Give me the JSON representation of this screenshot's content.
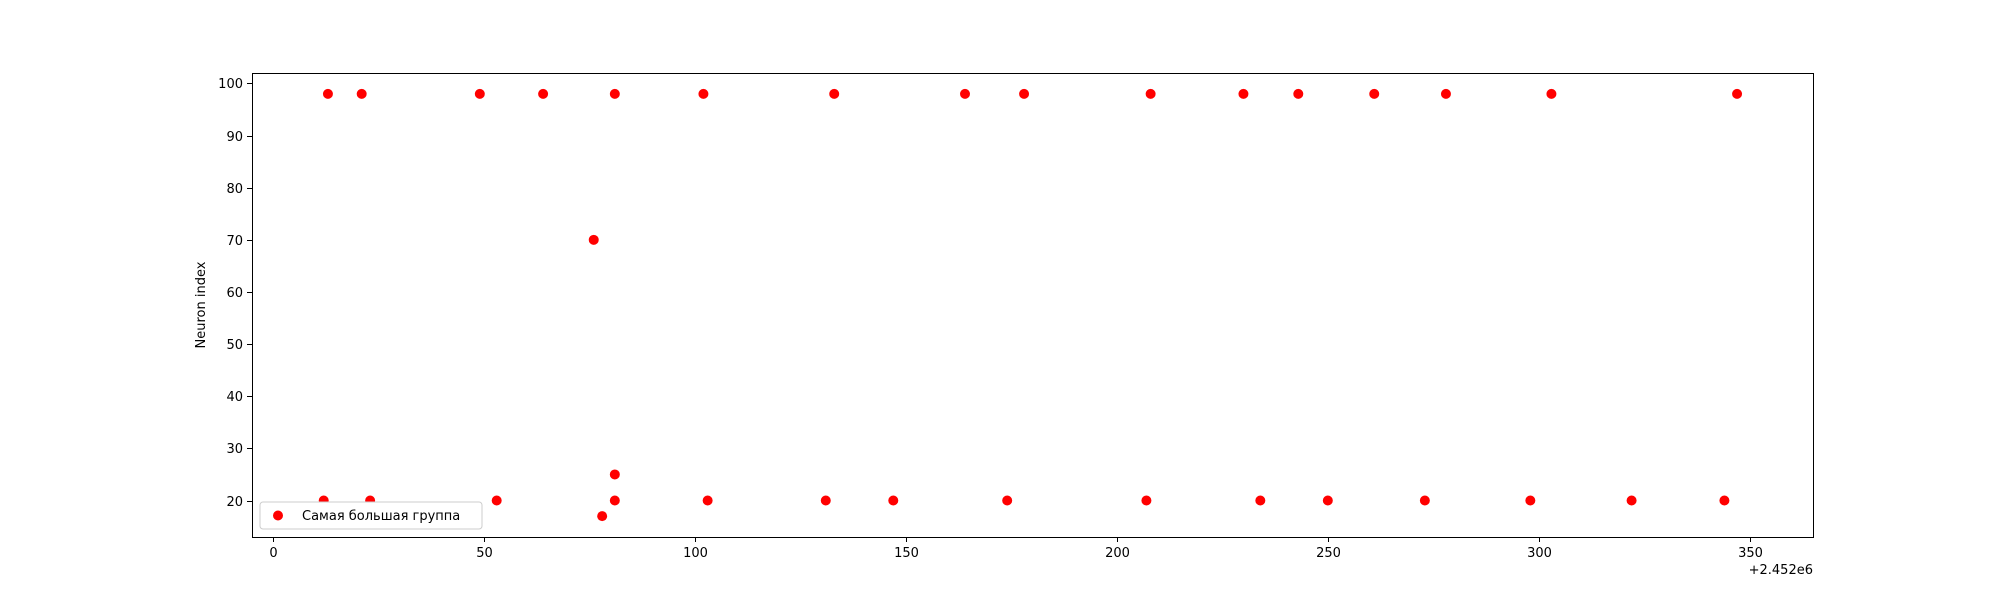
{
  "chart_data": {
    "type": "scatter",
    "title": "",
    "xlabel": "",
    "ylabel": "Neuron index",
    "x_offset_label": "+2.452e6",
    "xlim": [
      -5,
      365
    ],
    "ylim": [
      13,
      102
    ],
    "xticks": [
      0,
      50,
      100,
      150,
      200,
      250,
      300,
      350
    ],
    "yticks": [
      20,
      30,
      40,
      50,
      60,
      70,
      80,
      90,
      100
    ],
    "grid": false,
    "legend_position": "lower-left",
    "series": [
      {
        "name": "Самая большая группа",
        "color": "#ff0000",
        "points": [
          {
            "x": 2452013,
            "y": 98
          },
          {
            "x": 2452021,
            "y": 98
          },
          {
            "x": 2452049,
            "y": 98
          },
          {
            "x": 2452064,
            "y": 98
          },
          {
            "x": 2452081,
            "y": 98
          },
          {
            "x": 2452102,
            "y": 98
          },
          {
            "x": 2452133,
            "y": 98
          },
          {
            "x": 2452164,
            "y": 98
          },
          {
            "x": 2452178,
            "y": 98
          },
          {
            "x": 2452208,
            "y": 98
          },
          {
            "x": 2452230,
            "y": 98
          },
          {
            "x": 2452243,
            "y": 98
          },
          {
            "x": 2452261,
            "y": 98
          },
          {
            "x": 2452278,
            "y": 98
          },
          {
            "x": 2452303,
            "y": 98
          },
          {
            "x": 2452347,
            "y": 98
          },
          {
            "x": 2452076,
            "y": 70
          },
          {
            "x": 2452081,
            "y": 25
          },
          {
            "x": 2452012,
            "y": 20
          },
          {
            "x": 2452023,
            "y": 20
          },
          {
            "x": 2452053,
            "y": 20
          },
          {
            "x": 2452081,
            "y": 20
          },
          {
            "x": 2452103,
            "y": 20
          },
          {
            "x": 2452131,
            "y": 20
          },
          {
            "x": 2452147,
            "y": 20
          },
          {
            "x": 2452174,
            "y": 20
          },
          {
            "x": 2452207,
            "y": 20
          },
          {
            "x": 2452234,
            "y": 20
          },
          {
            "x": 2452250,
            "y": 20
          },
          {
            "x": 2452273,
            "y": 20
          },
          {
            "x": 2452298,
            "y": 20
          },
          {
            "x": 2452322,
            "y": 20
          },
          {
            "x": 2452344,
            "y": 20
          },
          {
            "x": 2452078,
            "y": 17
          }
        ]
      }
    ]
  }
}
